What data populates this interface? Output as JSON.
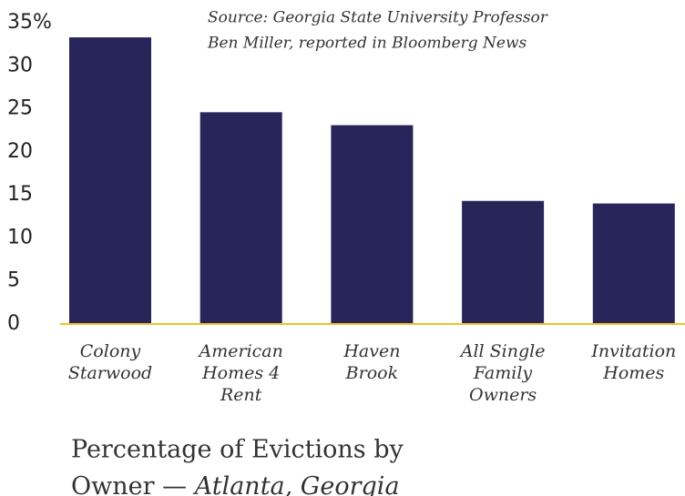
{
  "chart_data": {
    "type": "bar",
    "title_lines": [
      "Percentage of Evictions by",
      "Owner —"
    ],
    "subtitle": "Atlanta, Georgia",
    "source": [
      "Source: Georgia State University Professor",
      "Ben Miller, reported in Bloomberg News"
    ],
    "categories": [
      [
        "Colony",
        "Starwood"
      ],
      [
        "American",
        "Homes 4",
        "Rent"
      ],
      [
        "Haven",
        "Brook"
      ],
      [
        "All Single",
        "Family",
        "Owners"
      ],
      [
        "Invitation",
        "Homes"
      ]
    ],
    "values": [
      33.3,
      24.6,
      23.1,
      14.3,
      14.0
    ],
    "color": "#27255a",
    "axis_color": "#f0c02a",
    "ylim": [
      0,
      35
    ],
    "yticks": [
      0,
      5,
      10,
      15,
      20,
      25,
      30,
      {
        "value": 35,
        "label": "35%"
      }
    ],
    "grid": false
  }
}
